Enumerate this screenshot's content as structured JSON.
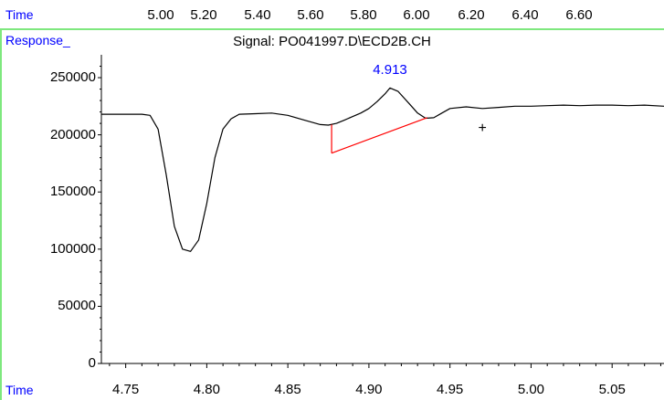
{
  "top_axis": {
    "label": "Time",
    "ticks": [
      "5.00",
      "5.20",
      "5.40",
      "5.60",
      "5.80",
      "6.00",
      "6.20",
      "6.40",
      "6.60"
    ]
  },
  "plot": {
    "y_label": "Response_",
    "signal": "Signal: PO041997.D\\ECD2B.CH",
    "x_label": "Time",
    "peak_label": "4.913"
  },
  "chart_data": {
    "type": "line",
    "title": "Signal: PO041997.D\\ECD2B.CH",
    "xlabel": "Time",
    "ylabel": "Response_",
    "xlim": [
      4.735,
      5.082
    ],
    "ylim": [
      0,
      270000
    ],
    "x_ticks": [
      "4.75",
      "4.80",
      "4.85",
      "4.90",
      "4.95",
      "5.00",
      "5.05"
    ],
    "y_ticks": [
      "0",
      "50000",
      "100000",
      "150000",
      "200000",
      "250000"
    ],
    "series": [
      {
        "x": [
          4.735,
          4.745,
          4.755,
          4.76,
          4.765,
          4.77,
          4.775,
          4.78,
          4.785,
          4.79,
          4.795,
          4.8,
          4.805,
          4.81,
          4.815,
          4.82,
          4.83,
          4.84,
          4.85,
          4.86,
          4.87,
          4.875,
          4.88,
          4.885,
          4.89,
          4.895,
          4.9,
          4.905,
          4.91,
          4.913,
          4.918,
          4.925,
          4.93,
          4.935,
          4.94,
          4.945,
          4.95,
          4.96,
          4.97,
          4.98,
          4.99,
          5.0,
          5.01,
          5.02,
          5.03,
          5.04,
          5.05,
          5.06,
          5.07,
          5.082
        ],
        "y": [
          218000,
          218000,
          218000,
          218000,
          217000,
          205000,
          165000,
          120000,
          100000,
          98000,
          108000,
          140000,
          180000,
          205000,
          214000,
          218000,
          218500,
          219000,
          217000,
          213000,
          209000,
          208500,
          210000,
          213000,
          216000,
          219000,
          223000,
          229000,
          236000,
          241000,
          238000,
          227000,
          219000,
          214500,
          215000,
          219000,
          223000,
          224500,
          223000,
          224000,
          225000,
          225000,
          225500,
          226000,
          225500,
          226000,
          226000,
          225500,
          226000,
          225000
        ]
      }
    ],
    "peaks": [
      {
        "rt": 4.913,
        "apex": 241000
      }
    ],
    "baseline": {
      "x": [
        4.877,
        4.936
      ],
      "y": [
        184000,
        215000
      ]
    },
    "marker": {
      "x": 4.97,
      "y": 206000,
      "symbol": "+"
    }
  },
  "colors": {
    "ruler_line": "#7ee87e",
    "axis_label": "#0000ff",
    "trace": "#000000",
    "baseline": "#ff0000",
    "peak_label": "#0000ff"
  }
}
